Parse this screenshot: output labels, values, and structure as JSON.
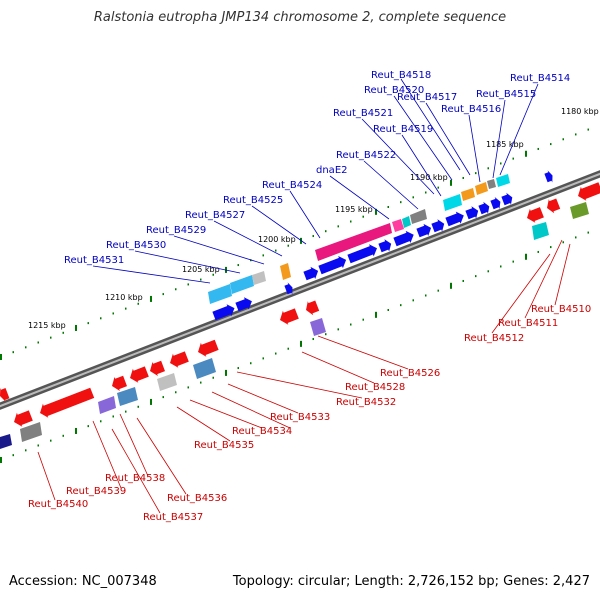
{
  "title": "Ralstonia eutropha JMP134 chromosome 2, complete sequence",
  "footer": {
    "accession": "Accession: NC_007348",
    "summary": "Topology: circular; Length: 2,726,152 bp; Genes: 2,427"
  },
  "colors": {
    "backbone": "#888888",
    "forward_label": "#0000c0",
    "reverse_label": "#cc0000",
    "tick": "#007700"
  },
  "scale_labels": [
    "1180 kbp",
    "1185 kbp",
    "1190 kbp",
    "1195 kbp",
    "1200 kbp",
    "1205 kbp",
    "1210 kbp",
    "1215 kbp"
  ],
  "forward_genes": [
    "Reut_B4518",
    "Reut_B4520",
    "Reut_B4517",
    "Reut_B4514",
    "Reut_B4515",
    "Reut_B4516",
    "Reut_B4521",
    "Reut_B4519",
    "Reut_B4522",
    "dnaE2",
    "Reut_B4524",
    "Reut_B4525",
    "Reut_B4527",
    "Reut_B4529",
    "Reut_B4530",
    "Reut_B4531"
  ],
  "reverse_genes": [
    "Reut_B4510",
    "Reut_B4511",
    "Reut_B4512",
    "Reut_B4526",
    "Reut_B4528",
    "Reut_B4532",
    "Reut_B4533",
    "Reut_B4534",
    "Reut_B4535",
    "Reut_B4538",
    "Reut_B4539",
    "Reut_B4536",
    "Reut_B4540",
    "Reut_B4537"
  ]
}
